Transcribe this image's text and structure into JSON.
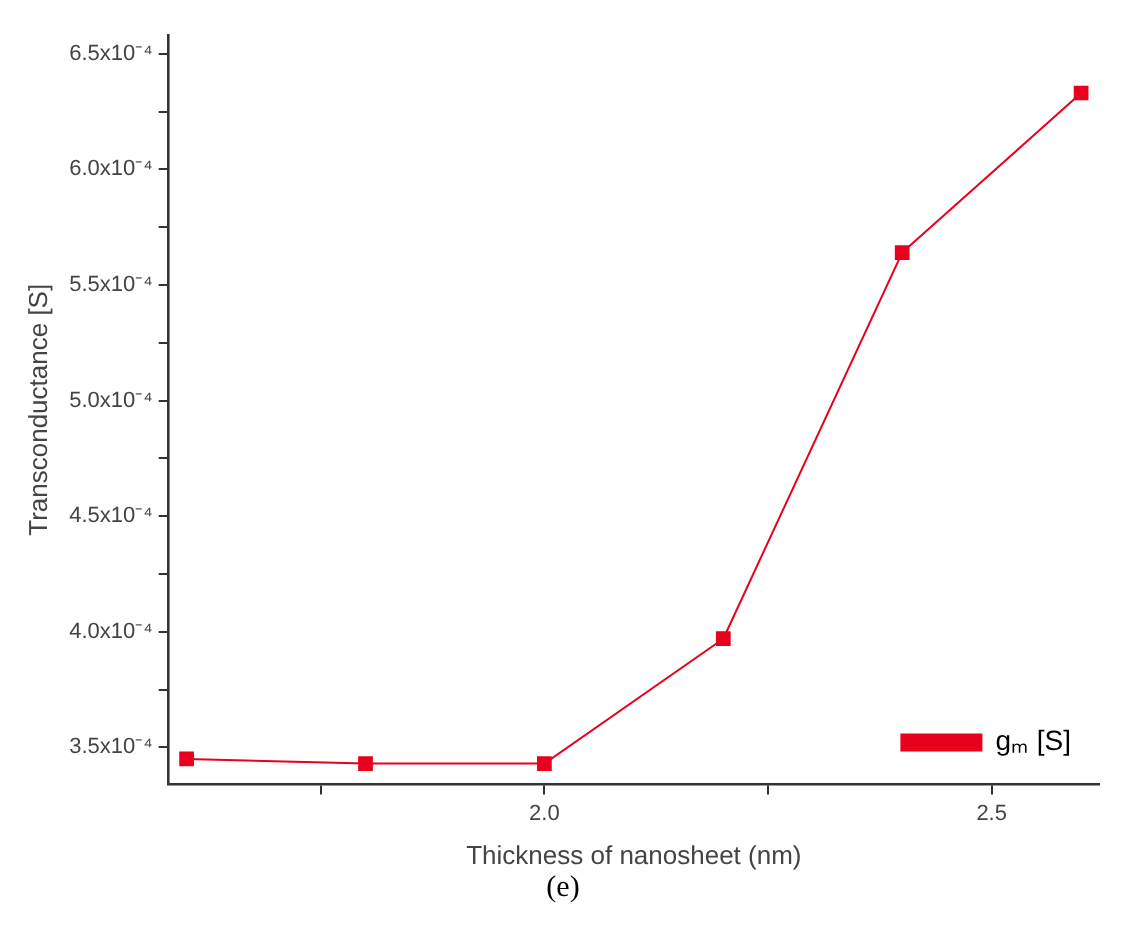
{
  "chart_data": {
    "type": "line",
    "xlabel": "Thickness of nanosheet (nm)",
    "ylabel": "Transconductance [S]",
    "x": [
      1.6,
      1.8,
      2.0,
      2.2,
      2.4,
      2.6
    ],
    "series": [
      {
        "name": "gₘ [S]",
        "color": "#e8001c",
        "values": [
          0.000345,
          0.000343,
          0.000343,
          0.000397,
          0.000564,
          0.000633
        ]
      }
    ],
    "xlim": [
      1.58,
      2.62
    ],
    "xticks": [
      {
        "value": 1.75,
        "label": null
      },
      {
        "value": 2.0,
        "label": "2.0"
      },
      {
        "value": 2.25,
        "label": null
      },
      {
        "value": 2.5,
        "label": "2.5"
      }
    ],
    "ylim": [
      0.000334,
      0.000658
    ],
    "yticks": [
      {
        "value": 0.00035,
        "label": "3.5x10⁻⁴"
      },
      {
        "value": 0.000375,
        "label": null
      },
      {
        "value": 0.0004,
        "label": "4.0x10⁻⁴"
      },
      {
        "value": 0.000425,
        "label": null
      },
      {
        "value": 0.00045,
        "label": "4.5x10⁻⁴"
      },
      {
        "value": 0.000475,
        "label": null
      },
      {
        "value": 0.0005,
        "label": "5.0x10⁻⁴"
      },
      {
        "value": 0.000525,
        "label": null
      },
      {
        "value": 0.00055,
        "label": "5.5x10⁻⁴"
      },
      {
        "value": 0.000575,
        "label": null
      },
      {
        "value": 0.0006,
        "label": "6.0x10⁻⁴"
      },
      {
        "value": 0.000625,
        "label": null
      },
      {
        "value": 0.00065,
        "label": "6.5x10⁻⁴"
      }
    ],
    "legend": "bottom right",
    "marker": "square",
    "line_style": "solid",
    "grid": false,
    "annotations": [
      "(e)"
    ]
  }
}
